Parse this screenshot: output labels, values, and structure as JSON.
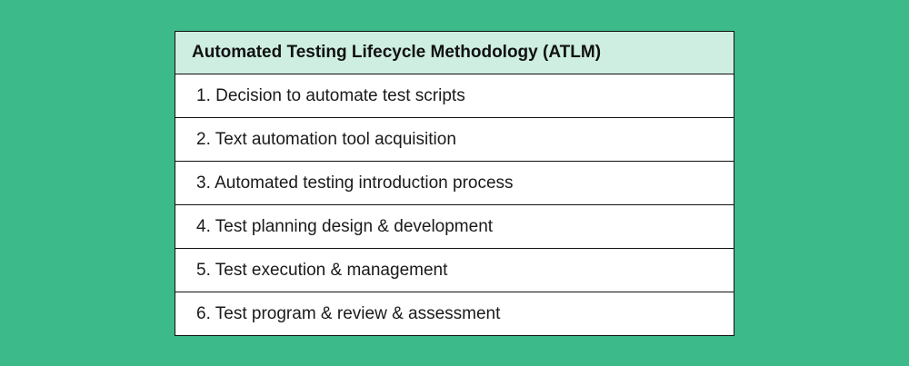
{
  "table": {
    "title": "Automated Testing Lifecycle Methodology (ATLM)",
    "rows": [
      "1. Decision to automate test scripts",
      "2. Text automation tool acquisition",
      "3. Automated testing introduction process",
      "4. Test planning design & development",
      "5. Test execution & management",
      "6. Test program & review & assessment"
    ]
  },
  "colors": {
    "background": "#3dba8a",
    "header": "#cdeee1"
  }
}
